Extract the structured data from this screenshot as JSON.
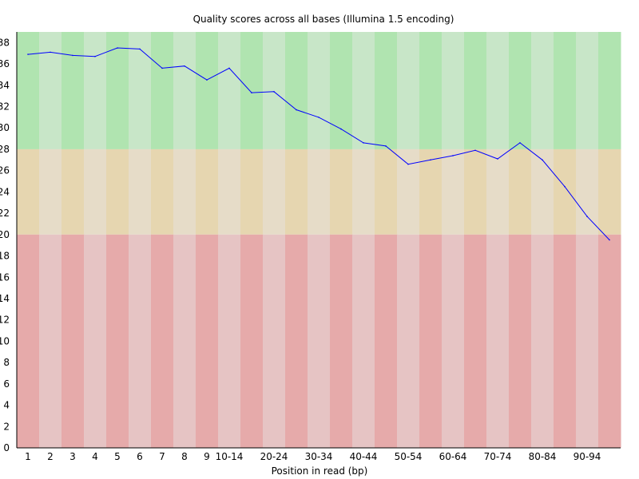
{
  "chart_data": {
    "type": "line",
    "title": "Quality scores across all bases (Illumina 1.5 encoding)",
    "xlabel": "Position in read (bp)",
    "ylabel": "",
    "ylim": [
      0,
      39
    ],
    "y_ticks": [
      0,
      2,
      4,
      6,
      8,
      10,
      12,
      14,
      16,
      18,
      20,
      22,
      24,
      26,
      28,
      30,
      32,
      34,
      36,
      38
    ],
    "categories": [
      "1",
      "2",
      "3",
      "4",
      "5",
      "6",
      "7",
      "8",
      "9",
      "10-14",
      "15-19",
      "20-24",
      "25-29",
      "30-34",
      "35-39",
      "40-44",
      "45-49",
      "50-54",
      "55-59",
      "60-64",
      "65-69",
      "70-74",
      "75-79",
      "80-84",
      "85-89",
      "90-94",
      "95-99"
    ],
    "x_tick_labels": [
      "1",
      "2",
      "3",
      "4",
      "5",
      "6",
      "7",
      "8",
      "9",
      "10-14",
      "",
      "20-24",
      "",
      "30-34",
      "",
      "40-44",
      "",
      "50-54",
      "",
      "60-64",
      "",
      "70-74",
      "",
      "80-84",
      "",
      "90-94",
      ""
    ],
    "series": [
      {
        "values": [
          36.9,
          37.1,
          36.8,
          36.7,
          37.5,
          37.4,
          35.6,
          35.8,
          34.5,
          35.6,
          33.3,
          33.4,
          31.7,
          31.0,
          29.9,
          28.6,
          28.3,
          26.6,
          27.0,
          27.4,
          27.9,
          27.1,
          28.6,
          27.0,
          24.5,
          21.7,
          19.5
        ],
        "color": "#0000ff"
      }
    ],
    "quality_bands": [
      {
        "name": "good",
        "from": 28,
        "to": 39,
        "colors": [
          "#b0e4b0",
          "#c8e6c8"
        ]
      },
      {
        "name": "reasonable",
        "from": 20,
        "to": 28,
        "colors": [
          "#e6d6b0",
          "#e6dcc8"
        ]
      },
      {
        "name": "poor",
        "from": 0,
        "to": 20,
        "colors": [
          "#e6aaaa",
          "#e6c4c4"
        ]
      }
    ],
    "grid": false,
    "legend": "none"
  }
}
